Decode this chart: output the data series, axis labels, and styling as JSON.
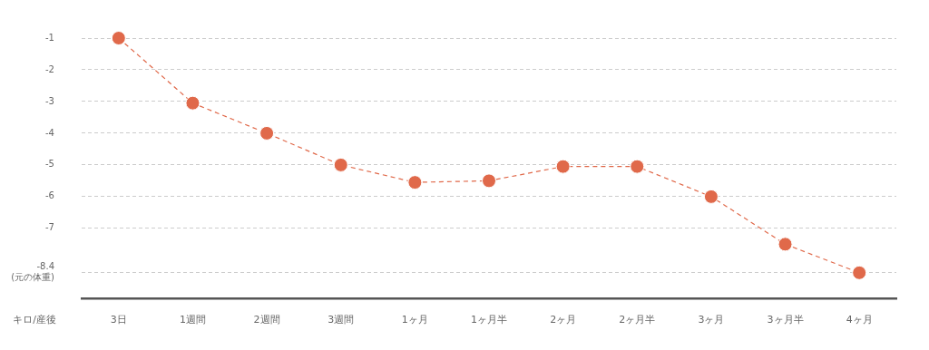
{
  "chart_data": {
    "type": "line",
    "xlabel": "キロ/産後",
    "categories": [
      "3日",
      "1週間",
      "2週間",
      "3週間",
      "1ヶ月",
      "1ヶ月半",
      "2ヶ月",
      "2ヶ月半",
      "3ヶ月",
      "3ヶ月半",
      "4ヶ月"
    ],
    "series": [
      {
        "color": "#e0694a",
        "values": [
          -1,
          -3.05,
          -4,
          -5,
          -5.55,
          -5.5,
          -5.05,
          -5.05,
          -6,
          -7.5,
          -8.4
        ]
      }
    ],
    "ylim": [
      -9.2,
      -1
    ],
    "yticks": [
      -1,
      -2,
      -3,
      -4,
      -5,
      -6,
      -7,
      {
        "value": -8.4,
        "label": "-8.4\n(元の体重)"
      }
    ],
    "grid": "y",
    "marker": "circle",
    "line_style": "dashed",
    "legend": false
  }
}
